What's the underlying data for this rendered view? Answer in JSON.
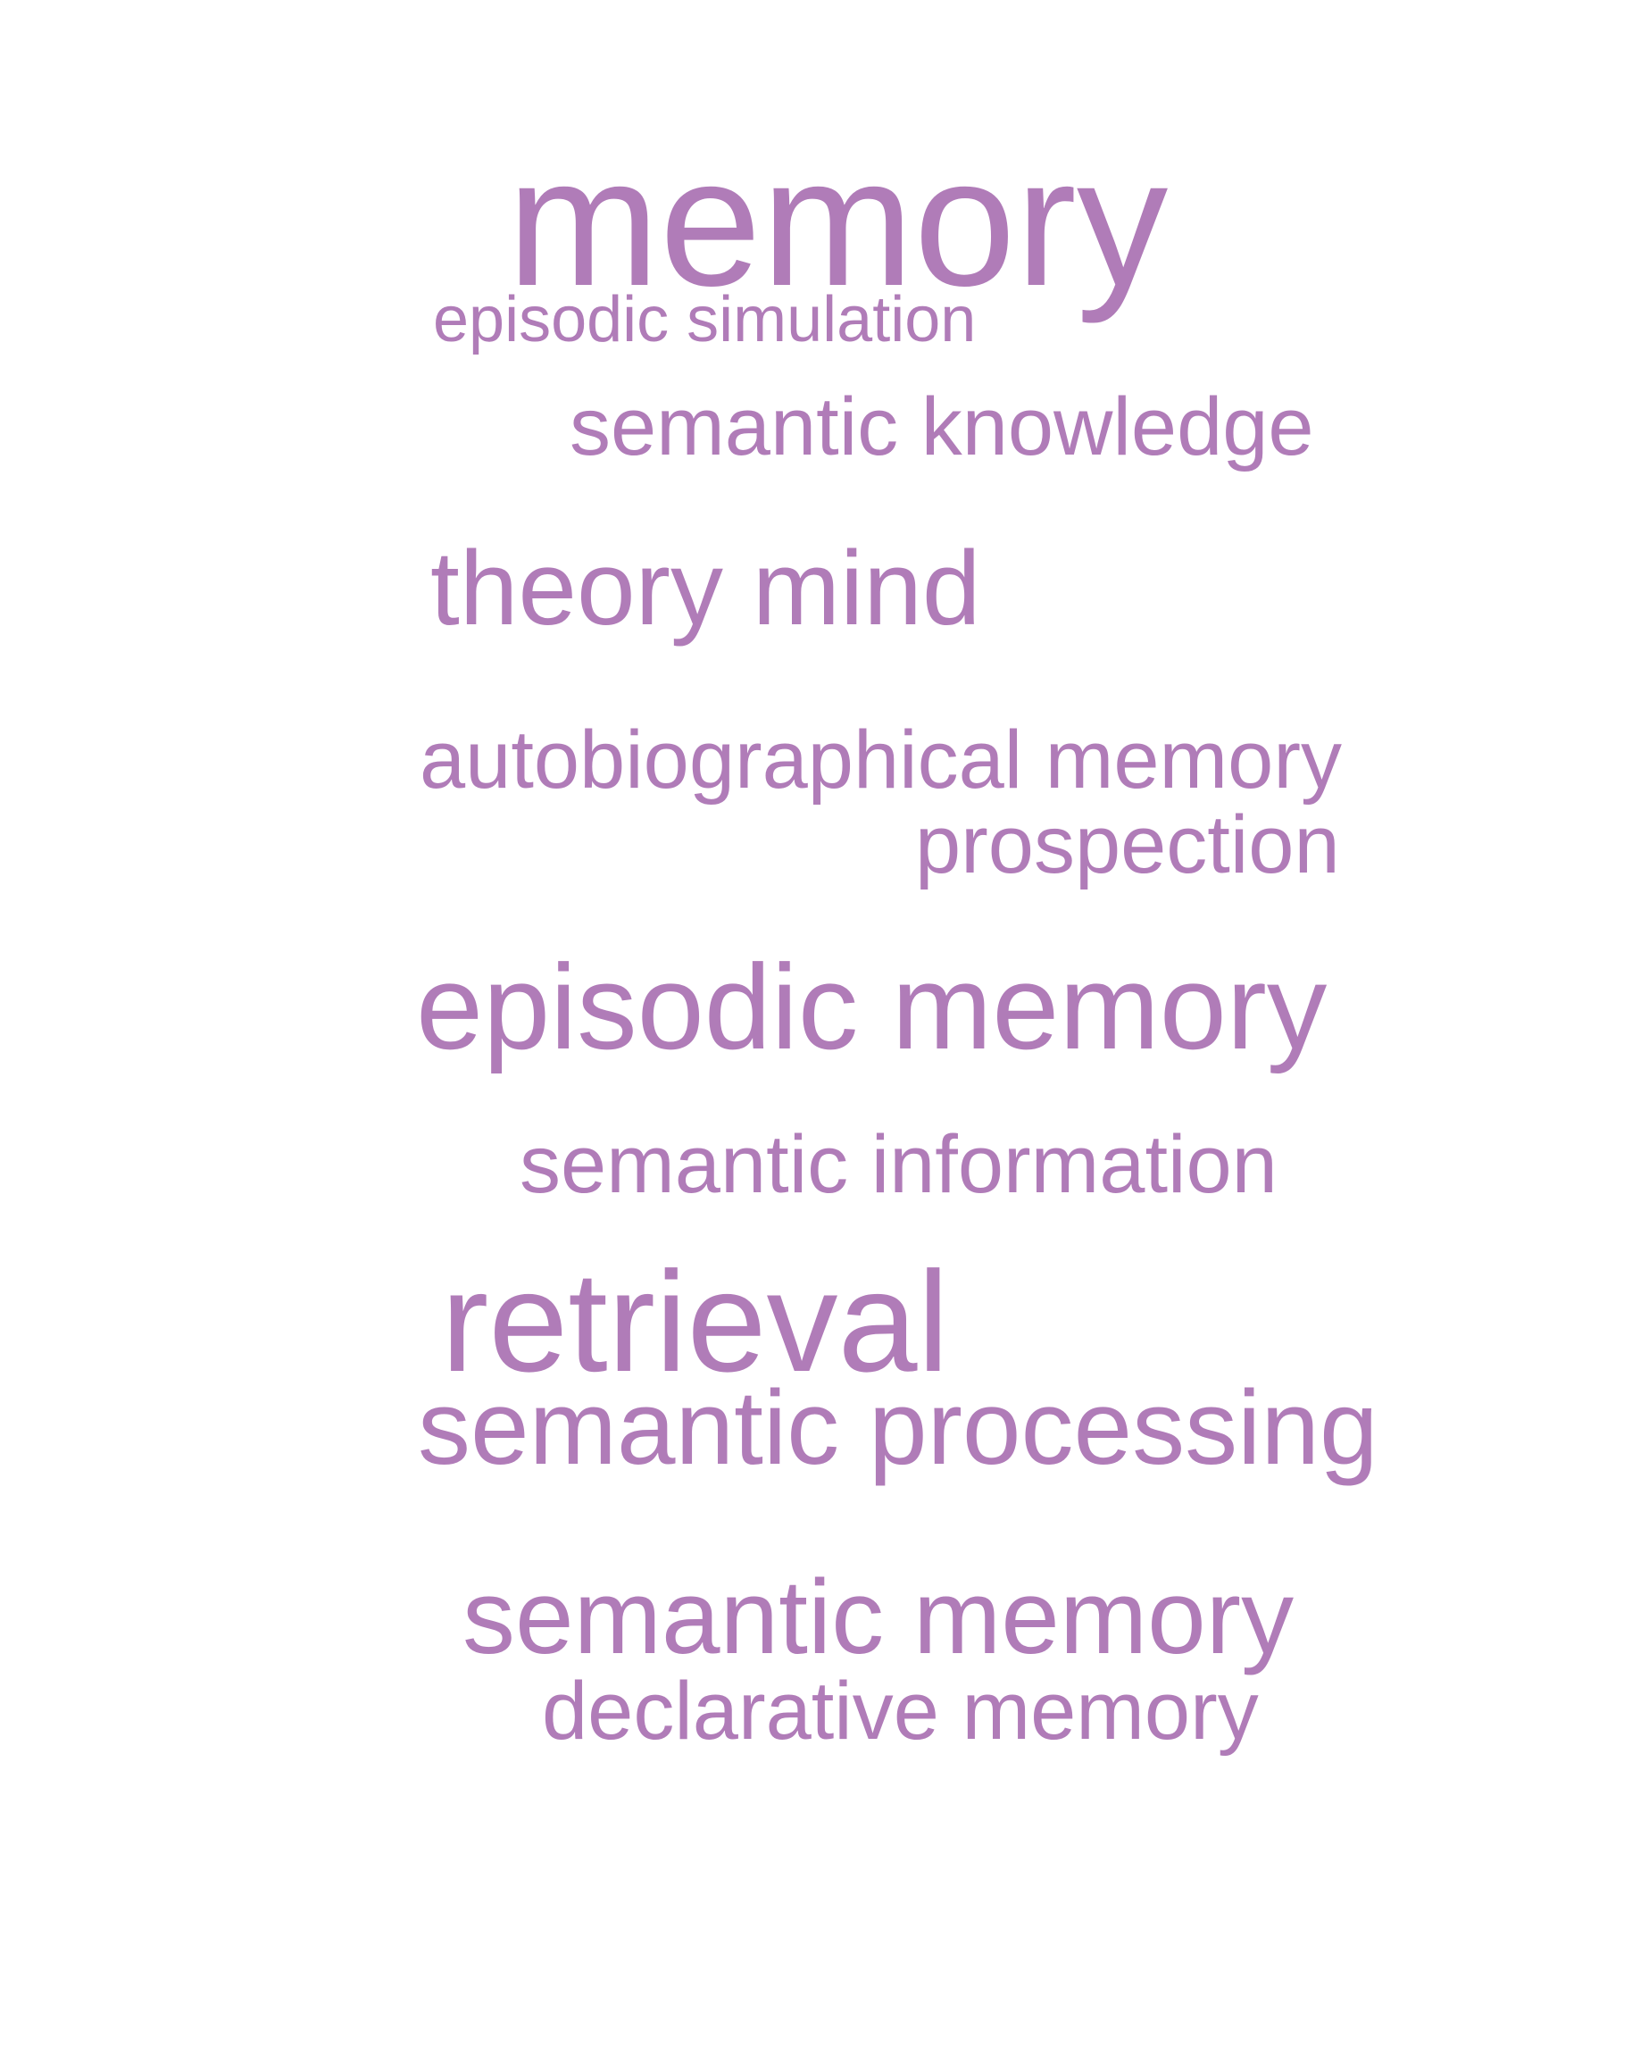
{
  "cloud": {
    "color": "#b07cb8",
    "words": {
      "memory": "memory",
      "episodic_simulation": "episodic simulation",
      "semantic_knowledge": "semantic knowledge",
      "theory_mind": "theory mind",
      "autobiographical_memory": "autobiographical memory",
      "prospection": "prospection",
      "episodic_memory": "episodic memory",
      "semantic_information": "semantic information",
      "retrieval": "retrieval",
      "semantic_processing": "semantic processing",
      "semantic_memory": "semantic memory",
      "declarative_memory": "declarative memory"
    }
  }
}
